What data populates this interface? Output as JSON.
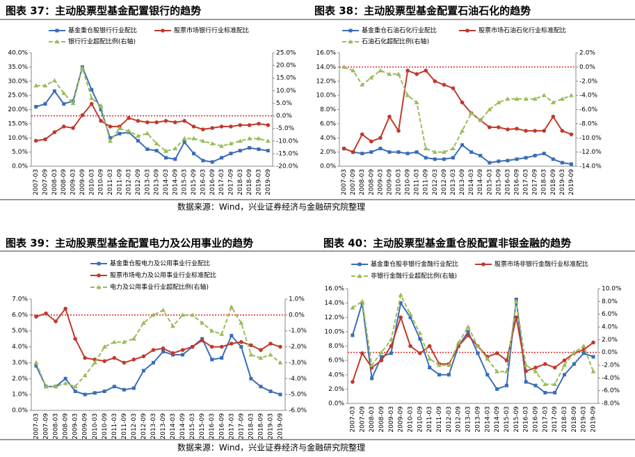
{
  "sources": [
    "数据来源：Wind，兴业证券经济与金融研究院整理",
    "数据来源：Wind，兴业证券经济与金融研究院整理"
  ],
  "chart_data": [
    {
      "type": "line",
      "title": "图表 37：主动股票型基金配置银行的趋势",
      "categories": [
        "2007-03",
        "2007-09",
        "2008-03",
        "2008-09",
        "2009-03",
        "2009-09",
        "2010-03",
        "2010-09",
        "2011-03",
        "2011-09",
        "2012-03",
        "2012-09",
        "2013-03",
        "2013-09",
        "2014-03",
        "2014-09",
        "2015-03",
        "2015-09",
        "2016-03",
        "2016-09",
        "2017-03",
        "2017-09",
        "2018-03",
        "2018-09",
        "2019-03",
        "2019-09"
      ],
      "series": [
        {
          "name": "基金重仓股银行行业配比",
          "color": "#3a6db5",
          "marker": "square",
          "values": [
            21,
            22,
            26.5,
            22,
            23,
            35,
            27,
            20,
            10,
            11.5,
            12,
            9,
            6,
            5.5,
            3,
            2.5,
            8.5,
            4.5,
            2,
            1.5,
            3,
            4.5,
            5.5,
            6.5,
            6,
            5.5
          ]
        },
        {
          "name": "股票市场银行行业标准配比",
          "color": "#c0392b",
          "marker": "circle",
          "values": [
            9,
            9.5,
            12,
            14,
            13.5,
            18,
            22,
            16,
            14,
            14,
            17,
            16,
            15.5,
            15.5,
            16,
            15.5,
            16,
            14,
            13,
            13.5,
            14,
            14,
            14.5,
            14.5,
            15,
            14.5
          ]
        },
        {
          "name": "银行行业超配比例(右轴)",
          "color": "#9bbb59",
          "marker": "triangle",
          "dashed": true,
          "axis": "y2",
          "values": [
            12,
            12,
            14,
            9,
            5,
            19,
            7,
            4,
            -10,
            -5,
            -6,
            -8,
            -7,
            -11,
            -14,
            -13,
            -9,
            -9,
            -10,
            -11,
            -12,
            -11,
            -10,
            -9,
            -9,
            -10
          ]
        }
      ],
      "ylim": [
        0,
        40
      ],
      "yticks": [
        {
          "value": 0,
          "label": "0.0%"
        },
        {
          "value": 5,
          "label": "5.0%"
        },
        {
          "value": 10,
          "label": "10.0%"
        },
        {
          "value": 15,
          "label": "15.0%"
        },
        {
          "value": 20,
          "label": "20.0%"
        },
        {
          "value": 25,
          "label": "25.0%"
        },
        {
          "value": 30,
          "label": "30.0%"
        },
        {
          "value": 35,
          "label": "35.0%"
        },
        {
          "value": 40,
          "label": "40.0%"
        }
      ],
      "y2lim": [
        -20,
        25
      ],
      "y2ticks": [
        {
          "value": -20,
          "label": "-20.0%"
        },
        {
          "value": -15,
          "label": "-15.0%"
        },
        {
          "value": -10,
          "label": "-10.0%"
        },
        {
          "value": -5,
          "label": "-5.0%"
        },
        {
          "value": 0,
          "label": "0.0%"
        },
        {
          "value": 5,
          "label": "5.0%"
        },
        {
          "value": 10,
          "label": "10.0%"
        },
        {
          "value": 15,
          "label": "15.0%"
        },
        {
          "value": 20,
          "label": "20.0%"
        },
        {
          "value": 25,
          "label": "25.0%"
        }
      ],
      "ref_y2": 0
    },
    {
      "type": "line",
      "title": "图表 38：主动股票型基金配置石油石化的趋势",
      "categories": [
        "2007-03",
        "2007-09",
        "2008-03",
        "2008-09",
        "2009-03",
        "2009-09",
        "2010-03",
        "2010-09",
        "2011-03",
        "2011-09",
        "2012-03",
        "2012-09",
        "2013-03",
        "2013-09",
        "2014-03",
        "2014-09",
        "2015-03",
        "2015-09",
        "2016-03",
        "2016-09",
        "2017-03",
        "2017-09",
        "2018-03",
        "2018-09",
        "2019-03",
        "2019-09"
      ],
      "series": [
        {
          "name": "基金重仓石油石化行业配比",
          "color": "#3a6db5",
          "marker": "square",
          "values": [
            2.5,
            2,
            1.8,
            2,
            2.5,
            2,
            2,
            1.8,
            2,
            1.2,
            1,
            1,
            1.2,
            3,
            2,
            1.5,
            0.5,
            0.7,
            0.8,
            1,
            1.2,
            1.5,
            1.8,
            1,
            0.5,
            0.3
          ]
        },
        {
          "name": "股票市场石油石化行业标准配比",
          "color": "#c0392b",
          "marker": "circle",
          "values": [
            2.5,
            2,
            4.5,
            3.5,
            4,
            7,
            5,
            13.5,
            13,
            13.5,
            12,
            11.5,
            11,
            9,
            7.5,
            6.5,
            5.5,
            5.5,
            5.2,
            5.3,
            5,
            5,
            5,
            7,
            5,
            4.5
          ]
        },
        {
          "name": "石油石化超配比例(右轴)",
          "color": "#9bbb59",
          "marker": "triangle",
          "dashed": true,
          "axis": "y2",
          "values": [
            0,
            -0.5,
            -2.5,
            -1.5,
            -0.5,
            -1,
            -1,
            -4,
            -5,
            -11.5,
            -12,
            -12,
            -11.5,
            -9,
            -6.5,
            -7.5,
            -6,
            -5,
            -4.5,
            -4.5,
            -4.5,
            -4.5,
            -4,
            -5,
            -4.5,
            -4
          ]
        }
      ],
      "ylim": [
        0,
        16
      ],
      "yticks": [
        {
          "value": 0,
          "label": "0.0%"
        },
        {
          "value": 2,
          "label": "2.0%"
        },
        {
          "value": 4,
          "label": "4.0%"
        },
        {
          "value": 6,
          "label": "6.0%"
        },
        {
          "value": 8,
          "label": "8.0%"
        },
        {
          "value": 10,
          "label": "10.0%"
        },
        {
          "value": 12,
          "label": "12.0%"
        },
        {
          "value": 14,
          "label": "14.0%"
        },
        {
          "value": 16,
          "label": "16.0%"
        }
      ],
      "y2lim": [
        -14,
        2
      ],
      "y2ticks": [
        {
          "value": -14,
          "label": "-14.0%"
        },
        {
          "value": -12,
          "label": "-12.0%"
        },
        {
          "value": -10,
          "label": "-10.0%"
        },
        {
          "value": -8,
          "label": "-8.0%"
        },
        {
          "value": -6,
          "label": "-6.0%"
        },
        {
          "value": -4,
          "label": "-4.0%"
        },
        {
          "value": -2,
          "label": "-2.0%"
        },
        {
          "value": 0,
          "label": "0.0%"
        },
        {
          "value": 2,
          "label": "2.0%"
        }
      ],
      "ref_y2": 0
    },
    {
      "type": "line",
      "title": "图表 39：主动股票型基金配置电力及公用事业的趋势",
      "categories": [
        "2007-03",
        "2007-09",
        "2008-03",
        "2008-09",
        "2009-03",
        "2009-09",
        "2010-03",
        "2010-09",
        "2011-03",
        "2011-09",
        "2012-03",
        "2012-09",
        "2013-03",
        "2013-09",
        "2014-03",
        "2014-09",
        "2015-03",
        "2015-09",
        "2016-03",
        "2016-09",
        "2017-03",
        "2017-09",
        "2018-03",
        "2018-09",
        "2019-03",
        "2019-09"
      ],
      "series": [
        {
          "name": "基金重仓股电力及公用事业行业配比",
          "color": "#3a6db5",
          "marker": "square",
          "values": [
            2.8,
            1.5,
            1.5,
            2,
            1.2,
            1,
            1.1,
            1.2,
            1.5,
            1.3,
            1.4,
            2.5,
            3,
            3.7,
            3.5,
            3.5,
            4,
            4.5,
            3.2,
            3.3,
            4.7,
            4,
            2,
            1.5,
            1.2,
            1
          ]
        },
        {
          "name": "股票市场电力及公用事业行业标准配比",
          "color": "#c0392b",
          "marker": "circle",
          "values": [
            5.9,
            6.1,
            5.6,
            6.4,
            4.5,
            3.3,
            3.2,
            3.1,
            3.3,
            3,
            3.2,
            3.4,
            3.8,
            3.9,
            3.6,
            3.8,
            4,
            4.4,
            4,
            4,
            4.2,
            4.3,
            4.1,
            3.8,
            4.2,
            4
          ]
        },
        {
          "name": "电力及公用事业行业超配比例(右轴)",
          "color": "#9bbb59",
          "marker": "triangle",
          "dashed": true,
          "axis": "y2",
          "values": [
            -3,
            -4.5,
            -4.5,
            -4.3,
            -4.5,
            -3.8,
            -3,
            -2,
            -1.7,
            -1.7,
            -1.5,
            -0.5,
            0,
            0.3,
            -0.7,
            0,
            0,
            -0.5,
            -1,
            -1.2,
            0.5,
            -0.5,
            -2.5,
            -2.7,
            -2.5,
            -3
          ]
        }
      ],
      "ylim": [
        0,
        7
      ],
      "yticks": [
        {
          "value": 0,
          "label": "0.0%"
        },
        {
          "value": 1,
          "label": "1.0%"
        },
        {
          "value": 2,
          "label": "2.0%"
        },
        {
          "value": 3,
          "label": "3.0%"
        },
        {
          "value": 4,
          "label": "4.0%"
        },
        {
          "value": 5,
          "label": "5.0%"
        },
        {
          "value": 6,
          "label": "6.0%"
        },
        {
          "value": 7,
          "label": "7.0%"
        }
      ],
      "y2lim": [
        -6,
        1
      ],
      "y2ticks": [
        {
          "value": -6,
          "label": "-6.0%"
        },
        {
          "value": -5,
          "label": "-5.0%"
        },
        {
          "value": -4,
          "label": "-4.0%"
        },
        {
          "value": -3,
          "label": "-3.0%"
        },
        {
          "value": -2,
          "label": "-2.0%"
        },
        {
          "value": -1,
          "label": "-1.0%"
        },
        {
          "value": 0,
          "label": "0.0%"
        },
        {
          "value": 1,
          "label": "1.0%"
        }
      ],
      "ref_y2": 0
    },
    {
      "type": "line",
      "title": "图表 40：主动股票型基金重仓股配置非银金融的趋势",
      "categories": [
        "2007-03",
        "2007-09",
        "2008-03",
        "2008-09",
        "2009-03",
        "2009-09",
        "2010-03",
        "2010-09",
        "2011-03",
        "2011-09",
        "2012-03",
        "2012-09",
        "2013-03",
        "2013-09",
        "2014-03",
        "2014-09",
        "2015-03",
        "2015-09",
        "2016-03",
        "2016-09",
        "2017-03",
        "2017-09",
        "2018-03",
        "2018-09",
        "2019-03",
        "2019-09"
      ],
      "series": [
        {
          "name": "基金重仓股非银行金融行业配比",
          "color": "#3a6db5",
          "marker": "square",
          "values": [
            9.5,
            14,
            3.5,
            6.5,
            7,
            14,
            12,
            9,
            5,
            4,
            4,
            8,
            10,
            7,
            4,
            2,
            2.5,
            14.5,
            3,
            2.5,
            1.5,
            1.5,
            4,
            5.5,
            7,
            6.5
          ]
        },
        {
          "name": "股票市场非银行金融行业标准配比",
          "color": "#c0392b",
          "marker": "circle",
          "values": [
            3,
            7,
            5,
            6,
            8,
            12,
            8,
            7,
            8,
            5.5,
            5.5,
            8,
            9.5,
            8,
            6.5,
            7,
            6,
            12,
            4.5,
            5,
            5.5,
            5,
            6,
            7,
            7.5,
            8.5
          ]
        },
        {
          "name": "非银行金融行业超配比例(右轴)",
          "color": "#9bbb59",
          "marker": "triangle",
          "dashed": true,
          "axis": "y2",
          "values": [
            7,
            8,
            -2,
            0,
            2,
            9,
            6,
            3,
            -1,
            -2,
            -2,
            1.5,
            4,
            1,
            -1,
            -3,
            -3,
            8,
            -2,
            -3,
            -5,
            -5,
            -2,
            0,
            1,
            -3
          ]
        }
      ],
      "ylim": [
        0,
        16
      ],
      "yticks": [
        {
          "value": 0,
          "label": "0.0%"
        },
        {
          "value": 2,
          "label": "2.0%"
        },
        {
          "value": 4,
          "label": "4.0%"
        },
        {
          "value": 6,
          "label": "6.0%"
        },
        {
          "value": 8,
          "label": "8.0%"
        },
        {
          "value": 10,
          "label": "10.0%"
        },
        {
          "value": 12,
          "label": "12.0%"
        },
        {
          "value": 14,
          "label": "14.0%"
        },
        {
          "value": 16,
          "label": "16.0%"
        }
      ],
      "y2lim": [
        -8,
        10
      ],
      "y2ticks": [
        {
          "value": -8,
          "label": "-8.0%"
        },
        {
          "value": -6,
          "label": "-6.0%"
        },
        {
          "value": -4,
          "label": "-4.0%"
        },
        {
          "value": -2,
          "label": "-2.0%"
        },
        {
          "value": 0,
          "label": "0.0%"
        },
        {
          "value": 2,
          "label": "2.0%"
        },
        {
          "value": 4,
          "label": "4.0%"
        },
        {
          "value": 6,
          "label": "6.0%"
        },
        {
          "value": 8,
          "label": "8.0%"
        },
        {
          "value": 10,
          "label": "10.0%"
        }
      ],
      "ref_y2": 0
    }
  ]
}
